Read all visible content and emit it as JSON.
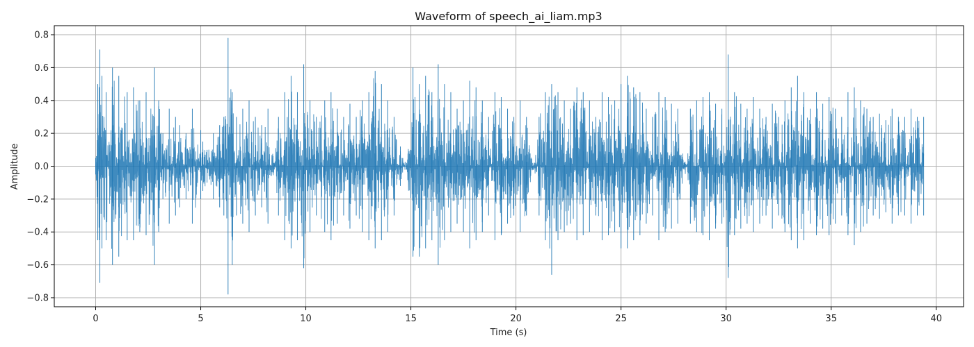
{
  "chart_data": {
    "type": "area",
    "title": "Waveform of speech_ai_liam.mp3",
    "xlabel": "Time (s)",
    "ylabel": "Amplitude",
    "xlim": [
      -1.97,
      41.3
    ],
    "ylim": [
      -0.855,
      0.855
    ],
    "xticks": [
      0,
      5,
      10,
      15,
      20,
      25,
      30,
      35,
      40
    ],
    "xtick_labels": [
      "0",
      "5",
      "10",
      "15",
      "20",
      "25",
      "30",
      "35",
      "40"
    ],
    "yticks": [
      -0.8,
      -0.6,
      -0.4,
      -0.2,
      0.0,
      0.2,
      0.4,
      0.6,
      0.8
    ],
    "ytick_labels": [
      "−0.8",
      "−0.6",
      "−0.4",
      "−0.2",
      "0.0",
      "0.2",
      "0.4",
      "0.6",
      "0.8"
    ],
    "grid": true,
    "color": "#1f77b4",
    "duration_s": 39.4,
    "series": [
      {
        "envelope": {
          "x": [
            0.0,
            0.1,
            0.2,
            0.3,
            0.5,
            0.8,
            1.1,
            1.5,
            1.8,
            2.1,
            2.4,
            2.8,
            3.0,
            3.2,
            3.5,
            3.8,
            4.0,
            4.3,
            4.6,
            5.0,
            5.1,
            5.3,
            5.6,
            5.9,
            6.1,
            6.3,
            6.5,
            6.7,
            7.0,
            7.3,
            7.6,
            7.9,
            8.2,
            8.5,
            8.7,
            9.0,
            9.3,
            9.6,
            9.9,
            10.2,
            10.5,
            10.9,
            11.2,
            11.5,
            11.8,
            12.1,
            12.4,
            12.7,
            13.0,
            13.3,
            13.6,
            13.9,
            14.2,
            14.5,
            14.8,
            15.1,
            15.4,
            15.7,
            16.0,
            16.3,
            16.6,
            16.9,
            17.2,
            17.5,
            17.8,
            18.1,
            18.4,
            18.7,
            19.0,
            19.3,
            19.6,
            19.9,
            20.2,
            20.5,
            20.8,
            21.1,
            21.4,
            21.7,
            22.0,
            22.3,
            22.6,
            22.9,
            23.2,
            23.5,
            23.8,
            24.1,
            24.4,
            24.7,
            25.0,
            25.3,
            25.6,
            25.9,
            26.2,
            26.5,
            26.8,
            27.1,
            27.4,
            27.7,
            28.0,
            28.3,
            28.6,
            28.9,
            29.2,
            29.5,
            29.8,
            30.1,
            30.4,
            30.7,
            31.0,
            31.3,
            31.6,
            31.9,
            32.2,
            32.5,
            32.8,
            33.1,
            33.4,
            33.7,
            34.0,
            34.3,
            34.6,
            34.9,
            35.2,
            35.5,
            35.8,
            36.1,
            36.4,
            36.7,
            37.0,
            37.3,
            37.6,
            37.9,
            38.2,
            38.5,
            38.8,
            39.1,
            39.4
          ],
          "upper": [
            0.05,
            0.5,
            0.71,
            0.55,
            0.45,
            0.6,
            0.55,
            0.45,
            0.48,
            0.4,
            0.45,
            0.6,
            0.4,
            0.2,
            0.35,
            0.3,
            0.25,
            0.2,
            0.35,
            0.22,
            0.15,
            0.1,
            0.2,
            0.25,
            0.3,
            0.78,
            0.45,
            0.3,
            0.35,
            0.4,
            0.3,
            0.25,
            0.35,
            0.02,
            0.3,
            0.45,
            0.55,
            0.45,
            0.62,
            0.4,
            0.3,
            0.4,
            0.45,
            0.35,
            0.3,
            0.38,
            0.3,
            0.4,
            0.45,
            0.58,
            0.5,
            0.4,
            0.3,
            0.12,
            0.02,
            0.6,
            0.5,
            0.55,
            0.45,
            0.62,
            0.5,
            0.45,
            0.35,
            0.4,
            0.52,
            0.48,
            0.4,
            0.3,
            0.45,
            0.42,
            0.35,
            0.3,
            0.4,
            0.3,
            0.02,
            0.3,
            0.45,
            0.5,
            0.45,
            0.4,
            0.35,
            0.48,
            0.45,
            0.4,
            0.3,
            0.45,
            0.42,
            0.4,
            0.5,
            0.55,
            0.48,
            0.45,
            0.35,
            0.3,
            0.45,
            0.42,
            0.38,
            0.35,
            0.02,
            0.35,
            0.4,
            0.42,
            0.45,
            0.38,
            0.35,
            0.68,
            0.45,
            0.38,
            0.35,
            0.42,
            0.35,
            0.3,
            0.38,
            0.3,
            0.4,
            0.48,
            0.55,
            0.45,
            0.35,
            0.45,
            0.38,
            0.42,
            0.35,
            0.3,
            0.45,
            0.48,
            0.4,
            0.35,
            0.3,
            0.32,
            0.28,
            0.35,
            0.3,
            0.3,
            0.35,
            0.3,
            0.3
          ],
          "lower": [
            -0.05,
            -0.45,
            -0.71,
            -0.5,
            -0.45,
            -0.6,
            -0.55,
            -0.45,
            -0.45,
            -0.4,
            -0.42,
            -0.6,
            -0.4,
            -0.2,
            -0.35,
            -0.3,
            -0.25,
            -0.2,
            -0.35,
            -0.2,
            -0.15,
            -0.1,
            -0.2,
            -0.25,
            -0.3,
            -0.78,
            -0.6,
            -0.3,
            -0.35,
            -0.4,
            -0.3,
            -0.25,
            -0.35,
            -0.02,
            -0.3,
            -0.45,
            -0.5,
            -0.45,
            -0.62,
            -0.4,
            -0.3,
            -0.4,
            -0.45,
            -0.35,
            -0.3,
            -0.38,
            -0.3,
            -0.4,
            -0.45,
            -0.5,
            -0.45,
            -0.4,
            -0.3,
            -0.12,
            -0.02,
            -0.55,
            -0.55,
            -0.5,
            -0.45,
            -0.6,
            -0.45,
            -0.4,
            -0.35,
            -0.4,
            -0.5,
            -0.45,
            -0.4,
            -0.3,
            -0.45,
            -0.42,
            -0.35,
            -0.3,
            -0.4,
            -0.3,
            -0.02,
            -0.3,
            -0.45,
            -0.66,
            -0.45,
            -0.4,
            -0.35,
            -0.45,
            -0.42,
            -0.4,
            -0.3,
            -0.45,
            -0.42,
            -0.4,
            -0.5,
            -0.5,
            -0.45,
            -0.42,
            -0.35,
            -0.3,
            -0.45,
            -0.4,
            -0.38,
            -0.35,
            -0.02,
            -0.35,
            -0.4,
            -0.42,
            -0.45,
            -0.38,
            -0.35,
            -0.68,
            -0.42,
            -0.38,
            -0.35,
            -0.4,
            -0.35,
            -0.3,
            -0.38,
            -0.3,
            -0.4,
            -0.45,
            -0.5,
            -0.45,
            -0.35,
            -0.42,
            -0.38,
            -0.42,
            -0.35,
            -0.3,
            -0.42,
            -0.48,
            -0.4,
            -0.35,
            -0.3,
            -0.32,
            -0.28,
            -0.35,
            -0.3,
            -0.3,
            -0.35,
            -0.3,
            -0.3
          ]
        }
      }
    ]
  }
}
